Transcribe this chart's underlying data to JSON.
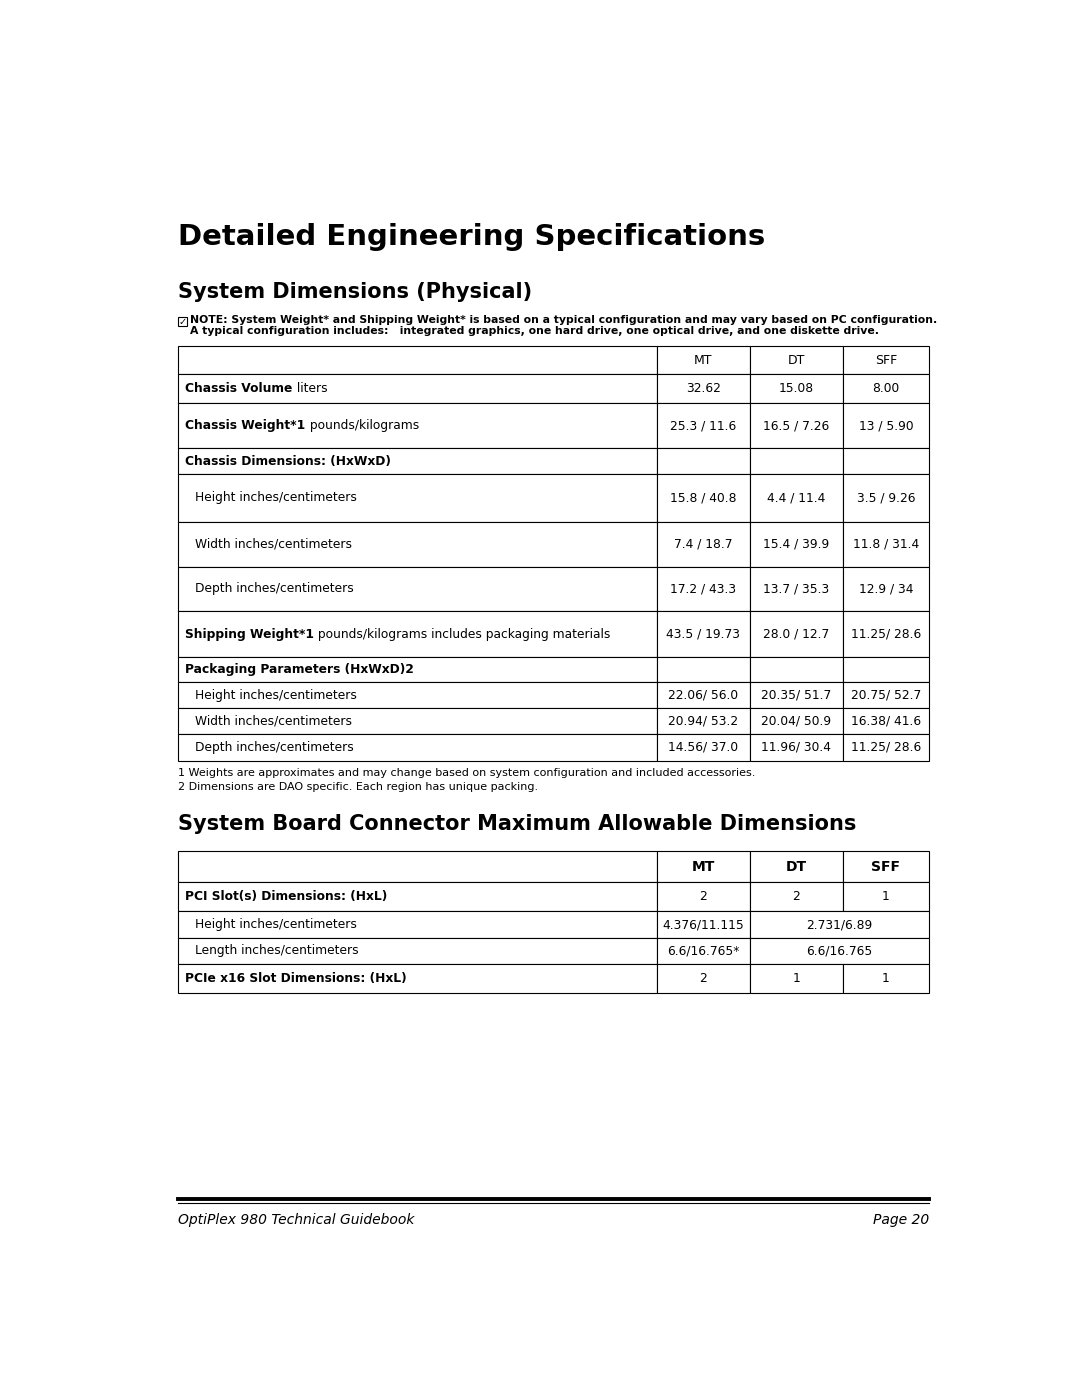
{
  "page_title": "Detailed Engineering Specifications",
  "section1_title": "System Dimensions (Physical)",
  "note_line1": "NOTE: System Weight* and Shipping Weight* is based on a typical configuration and may vary based on PC configuration.",
  "note_line2": "A typical configuration includes:   integrated graphics, one hard drive, one optical drive, and one diskette drive.",
  "table1_headers": [
    "MT",
    "DT",
    "SFF"
  ],
  "table1_rows": [
    {
      "label_bold": "Chassis Volume",
      "label_normal": " liters",
      "mt": "32.62",
      "dt": "15.08",
      "sff": "8.00",
      "is_section": false
    },
    {
      "label_bold": "Chassis Weight*1",
      "label_normal": " pounds/kilograms",
      "mt": "25.3 / 11.6",
      "dt": "16.5 / 7.26",
      "sff": "13 / 5.90",
      "is_section": false
    },
    {
      "label_bold": "Chassis Dimensions: (HxWxD)",
      "label_normal": "",
      "mt": "",
      "dt": "",
      "sff": "",
      "is_section": true
    },
    {
      "label_bold": "",
      "label_normal": "Height inches/centimeters",
      "mt": "15.8 / 40.8",
      "dt": "4.4 / 11.4",
      "sff": "3.5 / 9.26",
      "is_section": false
    },
    {
      "label_bold": "",
      "label_normal": "Width inches/centimeters",
      "mt": "7.4 / 18.7",
      "dt": "15.4 / 39.9",
      "sff": "11.8 / 31.4",
      "is_section": false
    },
    {
      "label_bold": "",
      "label_normal": "Depth inches/centimeters",
      "mt": "17.2 / 43.3",
      "dt": "13.7 / 35.3",
      "sff": "12.9 / 34",
      "is_section": false
    },
    {
      "label_bold": "Shipping Weight*1",
      "label_normal": " pounds/kilograms includes packaging materials",
      "mt": "43.5 / 19.73",
      "dt": "28.0 / 12.7",
      "sff": "11.25/ 28.6",
      "is_section": false
    },
    {
      "label_bold": "Packaging Parameters (HxWxD)2",
      "label_normal": "",
      "mt": "",
      "dt": "",
      "sff": "",
      "is_section": true
    },
    {
      "label_bold": "",
      "label_normal": "Height inches/centimeters",
      "mt": "22.06/ 56.0",
      "dt": "20.35/ 51.7",
      "sff": "20.75/ 52.7",
      "is_section": false
    },
    {
      "label_bold": "",
      "label_normal": "Width inches/centimeters",
      "mt": "20.94/ 53.2",
      "dt": "20.04/ 50.9",
      "sff": "16.38/ 41.6",
      "is_section": false
    },
    {
      "label_bold": "",
      "label_normal": "Depth inches/centimeters",
      "mt": "14.56/ 37.0",
      "dt": "11.96/ 30.4",
      "sff": "11.25/ 28.6",
      "is_section": false
    }
  ],
  "footnote1": "1 Weights are approximates and may change based on system configuration and included accessories.",
  "footnote2": "2 Dimensions are DAO specific. Each region has unique packing.",
  "section2_title": "System Board Connector Maximum Allowable Dimensions",
  "table2_headers": [
    "MT",
    "DT",
    "SFF"
  ],
  "table2_rows": [
    {
      "label_bold": "PCI Slot(s) Dimensions: (HxL)",
      "label_normal": "",
      "mt": "2",
      "dt": "2",
      "sff": "1",
      "is_section": true,
      "merged": false
    },
    {
      "label_bold": "",
      "label_normal": "Height inches/centimeters",
      "mt": "4.376/11.115",
      "dt": "2.731/6.89",
      "sff": "",
      "is_section": false,
      "merged": true
    },
    {
      "label_bold": "",
      "label_normal": "Length inches/centimeters",
      "mt": "6.6/16.765*",
      "dt": "6.6/16.765",
      "sff": "",
      "is_section": false,
      "merged": true
    },
    {
      "label_bold": "PCIe x16 Slot Dimensions: (HxL)",
      "label_normal": "",
      "mt": "2",
      "dt": "1",
      "sff": "1",
      "is_section": true,
      "merged": false
    }
  ],
  "footer_left": "OptiPlex 980 Technical Guidebook",
  "footer_right": "Page 20",
  "bg_color": "#ffffff"
}
